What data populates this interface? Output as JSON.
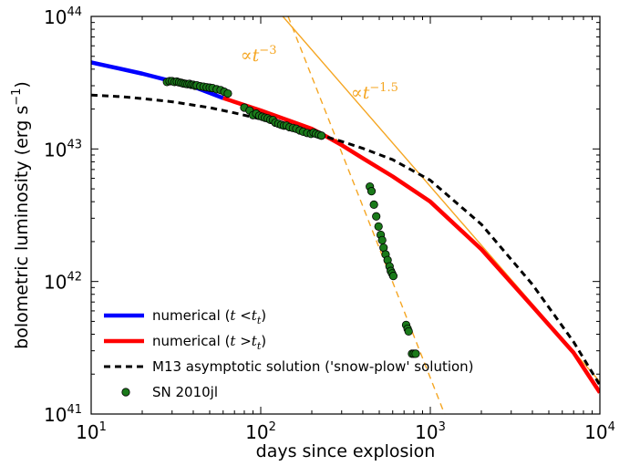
{
  "chart_data": {
    "type": "line",
    "xscale": "log",
    "yscale": "log",
    "xlim": [
      10,
      10000
    ],
    "ylim": [
      1e+41,
      1e+44
    ],
    "xlabel": "days since explosion",
    "ylabel_main": "bolometric luminosity (erg s",
    "ylabel_exp": "−1",
    "ylabel_close": ")",
    "x_ticks": [
      {
        "value": 10,
        "base": "10",
        "exp": "1"
      },
      {
        "value": 100,
        "base": "10",
        "exp": "2"
      },
      {
        "value": 1000,
        "base": "10",
        "exp": "3"
      },
      {
        "value": 10000,
        "base": "10",
        "exp": "4"
      }
    ],
    "y_ticks": [
      {
        "value": 1e+41,
        "base": "10",
        "exp": "41"
      },
      {
        "value": 1e+42,
        "base": "10",
        "exp": "42"
      },
      {
        "value": 1e+43,
        "base": "10",
        "exp": "43"
      },
      {
        "value": 1e+44,
        "base": "10",
        "exp": "44"
      }
    ],
    "grid": false,
    "legend_position": "bottom-left",
    "series": [
      {
        "key": "num_early",
        "name": "numerical (",
        "name_math": "t",
        "name_op": " <",
        "name_math2": "t",
        "name_sub": "t",
        "name_close": ")",
        "style": "solid",
        "color": "#0000ff",
        "width": 4.5,
        "points": [
          [
            10,
            4.5e+43
          ],
          [
            20,
            3.7e+43
          ],
          [
            40,
            2.95e+43
          ],
          [
            60,
            2.42e+43
          ]
        ]
      },
      {
        "key": "num_late",
        "name": "numerical (",
        "name_math": "t",
        "name_op": " >",
        "name_math2": "t",
        "name_sub": "t",
        "name_close": ")",
        "style": "solid",
        "color": "#ff0000",
        "width": 4.5,
        "points": [
          [
            60,
            2.42e+43
          ],
          [
            100,
            1.95e+43
          ],
          [
            150,
            1.62e+43
          ],
          [
            200,
            1.42e+43
          ],
          [
            250,
            1.22e+43
          ],
          [
            300,
            1.07e+43
          ],
          [
            400,
            8.5e+42
          ],
          [
            600,
            6.2e+42
          ],
          [
            1000,
            4e+42
          ],
          [
            2000,
            1.75e+42
          ],
          [
            4000,
            6.5e+41
          ],
          [
            7000,
            2.9e+41
          ],
          [
            10000,
            1.45e+41
          ]
        ]
      },
      {
        "key": "m13",
        "name": "M13 asymptotic solution ('snow-plow' solution)",
        "style": "dashed",
        "color": "#000000",
        "width": 3,
        "points": [
          [
            10,
            2.55e+43
          ],
          [
            15,
            2.48e+43
          ],
          [
            20,
            2.4e+43
          ],
          [
            30,
            2.27e+43
          ],
          [
            50,
            2.05e+43
          ],
          [
            70,
            1.87e+43
          ],
          [
            100,
            1.68e+43
          ],
          [
            150,
            1.47e+43
          ],
          [
            200,
            1.33e+43
          ],
          [
            300,
            1.14e+43
          ],
          [
            400,
            1.01e+43
          ],
          [
            600,
            8.3e+42
          ],
          [
            1000,
            5.8e+42
          ],
          [
            2000,
            2.7e+42
          ],
          [
            4000,
            9.5e+41
          ],
          [
            7000,
            3.5e+41
          ],
          [
            10000,
            1.65e+41
          ]
        ]
      },
      {
        "key": "obs",
        "name": "SN 2010jl",
        "style": "markers",
        "color": "#1a7a1a",
        "edge": "#000000",
        "points": [
          [
            28,
            3.2e+43
          ],
          [
            29,
            3.25e+43
          ],
          [
            30,
            3.25e+43
          ],
          [
            31,
            3.2e+43
          ],
          [
            32,
            3.22e+43
          ],
          [
            33,
            3.18e+43
          ],
          [
            34,
            3.15e+43
          ],
          [
            35,
            3.12e+43
          ],
          [
            36,
            3.1e+43
          ],
          [
            37,
            3.08e+43
          ],
          [
            38,
            3.1e+43
          ],
          [
            39,
            3.05e+43
          ],
          [
            40,
            3.05e+43
          ],
          [
            41,
            3e+43
          ],
          [
            42,
            3.02e+43
          ],
          [
            44,
            2.97e+43
          ],
          [
            46,
            2.95e+43
          ],
          [
            48,
            2.92e+43
          ],
          [
            50,
            2.9e+43
          ],
          [
            52,
            2.88e+43
          ],
          [
            55,
            2.82e+43
          ],
          [
            58,
            2.78e+43
          ],
          [
            61,
            2.7e+43
          ],
          [
            64,
            2.62e+43
          ],
          [
            80,
            2.05e+43
          ],
          [
            86,
            1.95e+43
          ],
          [
            90,
            1.8e+43
          ],
          [
            94,
            1.85e+43
          ],
          [
            98,
            1.78e+43
          ],
          [
            102,
            1.75e+43
          ],
          [
            106,
            1.72e+43
          ],
          [
            110,
            1.7e+43
          ],
          [
            114,
            1.66e+43
          ],
          [
            118,
            1.65e+43
          ],
          [
            122,
            1.58e+43
          ],
          [
            127,
            1.55e+43
          ],
          [
            132,
            1.52e+43
          ],
          [
            137,
            1.5e+43
          ],
          [
            142,
            1.5e+43
          ],
          [
            148,
            1.46e+43
          ],
          [
            155,
            1.44e+43
          ],
          [
            162,
            1.42e+43
          ],
          [
            170,
            1.38e+43
          ],
          [
            178,
            1.35e+43
          ],
          [
            188,
            1.32e+43
          ],
          [
            198,
            1.3e+43
          ],
          [
            205,
            1.33e+43
          ],
          [
            212,
            1.3e+43
          ],
          [
            220,
            1.28e+43
          ],
          [
            228,
            1.26e+43
          ],
          [
            440,
            5.2e+42
          ],
          [
            450,
            4.8e+42
          ],
          [
            465,
            3.8e+42
          ],
          [
            480,
            3.1e+42
          ],
          [
            495,
            2.6e+42
          ],
          [
            510,
            2.25e+42
          ],
          [
            520,
            2.05e+42
          ],
          [
            530,
            1.8e+42
          ],
          [
            545,
            1.6e+42
          ],
          [
            560,
            1.45e+42
          ],
          [
            575,
            1.3e+42
          ],
          [
            585,
            1.2e+42
          ],
          [
            595,
            1.15e+42
          ],
          [
            605,
            1.1e+42
          ],
          [
            720,
            4.7e+41
          ],
          [
            735,
            4.4e+41
          ],
          [
            745,
            4.2e+41
          ],
          [
            780,
            2.85e+41
          ],
          [
            800,
            2.85e+41
          ],
          [
            820,
            2.85e+41
          ]
        ]
      }
    ],
    "guide_lines": [
      {
        "key": "pow3",
        "color": "#f5a623",
        "style": "dashed",
        "points": [
          [
            145,
            1e+44
          ],
          [
            1300,
            8e+40
          ]
        ]
      },
      {
        "key": "pow15",
        "color": "#f5a623",
        "style": "solid",
        "points": [
          [
            135,
            1e+44
          ],
          [
            10000,
            1.75e+41
          ]
        ]
      }
    ],
    "annotations": [
      {
        "key": "ann3",
        "base": "∝",
        "math": "t",
        "exp": "−3",
        "color": "#f5a623",
        "at": [
          76,
          4.6e+43
        ]
      },
      {
        "key": "ann15",
        "base": "∝",
        "math": "t",
        "exp": "−1.5",
        "color": "#f5a623",
        "at": [
          340,
          2.4e+43
        ]
      }
    ]
  }
}
